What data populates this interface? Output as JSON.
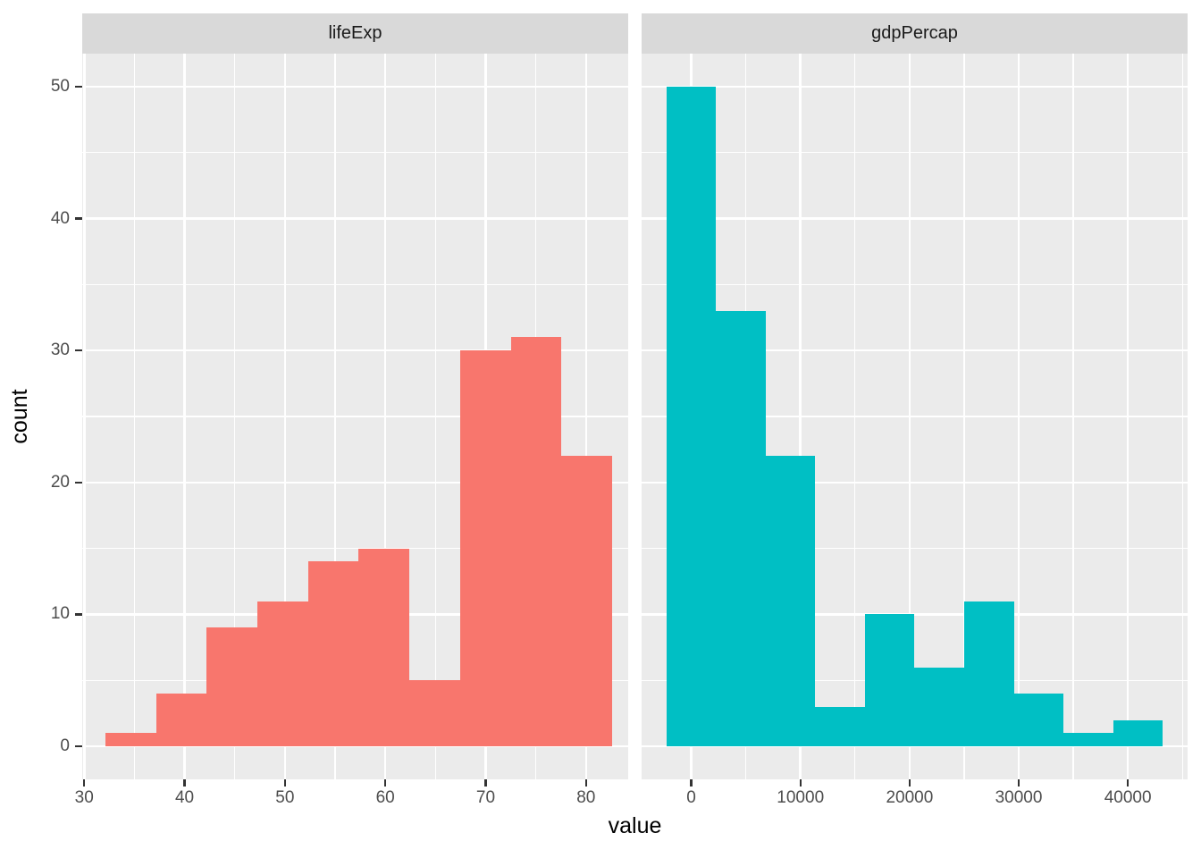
{
  "chart": {
    "xlabel": "value",
    "ylabel": "count",
    "background": "#FFFFFF",
    "panel_background": "#EBEBEB",
    "strip_background": "#D9D9D9",
    "gridline_color": "#FFFFFF",
    "tick_mark_color": "#333333",
    "tick_label_color": "#4D4D4D",
    "y_axis": {
      "domain": [
        -2.5,
        52.5
      ],
      "ticks": [
        0,
        10,
        20,
        30,
        40,
        50
      ],
      "minor_ticks": [
        5,
        15,
        25,
        35,
        45
      ]
    }
  },
  "chart_data": [
    {
      "type": "bar",
      "subtype": "histogram",
      "facet": "lifeExp",
      "fill": "#F8766D",
      "bin_start": 32.1,
      "bin_width": 5.05,
      "bin_edges": [
        32.1,
        37.15,
        42.2,
        47.25,
        52.3,
        57.35,
        62.4,
        67.45,
        72.5,
        77.55,
        82.6
      ],
      "counts": [
        1,
        4,
        9,
        11,
        14,
        15,
        5,
        30,
        31,
        22
      ],
      "x_domain": [
        29.8,
        84.2
      ],
      "x_ticks": [
        30,
        40,
        50,
        60,
        70,
        80
      ],
      "x_minor_ticks": [
        35,
        45,
        55,
        65,
        75
      ],
      "total_count": 142
    },
    {
      "type": "bar",
      "subtype": "histogram",
      "facet": "gdpPercap",
      "fill": "#00BFC4",
      "bin_start": -2274,
      "bin_width": 4547,
      "bin_edges": [
        -2274,
        2273,
        6820,
        11367,
        15914,
        20461,
        25008,
        29555,
        34102,
        38649,
        43196
      ],
      "counts": [
        50,
        33,
        22,
        3,
        10,
        6,
        11,
        4,
        1,
        2
      ],
      "x_domain": [
        -4550,
        45473
      ],
      "x_ticks": [
        0,
        10000,
        20000,
        30000,
        40000
      ],
      "x_minor_ticks": [
        5000,
        15000,
        25000,
        35000,
        45000
      ],
      "total_count": 142
    }
  ]
}
